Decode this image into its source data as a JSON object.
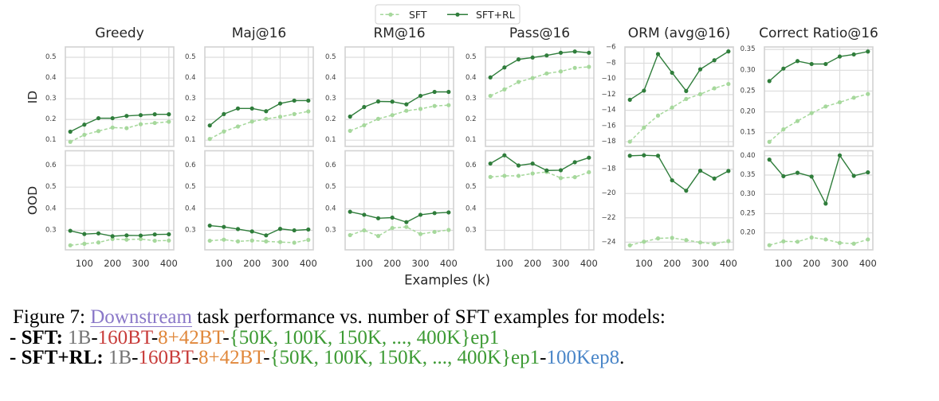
{
  "chart_data": {
    "type": "line",
    "x": [
      50,
      100,
      150,
      200,
      250,
      300,
      350,
      400
    ],
    "xlim": [
      32.5,
      417.5
    ],
    "xticks": [
      100,
      200,
      300,
      400
    ],
    "xtick_labels": [
      "100",
      "200",
      "300",
      "400"
    ],
    "xlabel": "Examples (k)",
    "row_labels": {
      "ID": "ID",
      "OOD": "OOD"
    },
    "grid": true,
    "legend": {
      "position": "top-center",
      "entries": [
        "SFT",
        "SFT+RL"
      ]
    },
    "series_colors": {
      "SFT": "#a6d89c",
      "SFT+RL": "#2f7d3b"
    },
    "series_styles": {
      "SFT": "dashed",
      "SFT+RL": "solid"
    },
    "panels": [
      {
        "title": "Greedy",
        "ID": {
          "ylim": [
            0.07,
            0.55
          ],
          "yticks": [
            0.1,
            0.2,
            0.3,
            0.4,
            0.5
          ],
          "ytick_labels": [
            "0.1",
            "0.2",
            "0.3",
            "0.4",
            "0.5"
          ],
          "series": [
            {
              "name": "SFT",
              "values": [
                0.092,
                0.126,
                0.144,
                0.161,
                0.158,
                0.177,
                0.183,
                0.189
              ]
            },
            {
              "name": "SFT+RL",
              "values": [
                0.141,
                0.175,
                0.206,
                0.206,
                0.217,
                0.221,
                0.225,
                0.225
              ]
            }
          ]
        },
        "OOD": {
          "ylim": [
            0.21,
            0.668
          ],
          "yticks": [
            0.3,
            0.4,
            0.5,
            0.6
          ],
          "ytick_labels": [
            "0.3",
            "0.4",
            "0.5",
            "0.6"
          ],
          "series": [
            {
              "name": "SFT",
              "values": [
                0.231,
                0.238,
                0.244,
                0.26,
                0.257,
                0.26,
                0.252,
                0.253
              ]
            },
            {
              "name": "SFT+RL",
              "values": [
                0.298,
                0.283,
                0.286,
                0.273,
                0.277,
                0.276,
                0.281,
                0.282
              ]
            }
          ]
        }
      },
      {
        "title": "Maj@16",
        "ID": {
          "ylim": [
            0.07,
            0.55
          ],
          "yticks": [
            0.1,
            0.2,
            0.3,
            0.4,
            0.5
          ],
          "ytick_labels": [
            "0.1",
            "0.2",
            "0.3",
            "0.4",
            "0.5"
          ],
          "series": [
            {
              "name": "SFT",
              "values": [
                0.106,
                0.142,
                0.166,
                0.19,
                0.203,
                0.213,
                0.226,
                0.239
              ]
            },
            {
              "name": "SFT+RL",
              "values": [
                0.171,
                0.226,
                0.253,
                0.253,
                0.24,
                0.277,
                0.291,
                0.291
              ]
            }
          ]
        },
        "OOD": {
          "ylim": [
            0.21,
            0.668
          ],
          "yticks": [
            0.3,
            0.4,
            0.5,
            0.6
          ],
          "ytick_labels": [
            "0.3",
            "0.4",
            "0.5",
            "0.6"
          ],
          "series": [
            {
              "name": "SFT",
              "values": [
                0.252,
                0.257,
                0.249,
                0.253,
                0.249,
                0.246,
                0.243,
                0.256
              ]
            },
            {
              "name": "SFT+RL",
              "values": [
                0.322,
                0.316,
                0.306,
                0.295,
                0.277,
                0.307,
                0.3,
                0.304
              ]
            }
          ]
        }
      },
      {
        "title": "RM@16",
        "ID": {
          "ylim": [
            0.07,
            0.55
          ],
          "yticks": [
            0.1,
            0.2,
            0.3,
            0.4,
            0.5
          ],
          "ytick_labels": [
            "0.1",
            "0.2",
            "0.3",
            "0.4",
            "0.5"
          ],
          "series": [
            {
              "name": "SFT",
              "values": [
                0.145,
                0.172,
                0.203,
                0.221,
                0.242,
                0.251,
                0.265,
                0.269
              ]
            },
            {
              "name": "SFT+RL",
              "values": [
                0.214,
                0.26,
                0.287,
                0.286,
                0.273,
                0.314,
                0.333,
                0.333
              ]
            }
          ]
        },
        "OOD": {
          "ylim": [
            0.21,
            0.668
          ],
          "yticks": [
            0.3,
            0.4,
            0.5,
            0.6
          ],
          "ytick_labels": [
            "0.3",
            "0.4",
            "0.5",
            "0.6"
          ],
          "series": [
            {
              "name": "SFT",
              "values": [
                0.278,
                0.3,
                0.274,
                0.311,
                0.316,
                0.283,
                0.293,
                0.302
              ]
            },
            {
              "name": "SFT+RL",
              "values": [
                0.386,
                0.372,
                0.356,
                0.359,
                0.338,
                0.372,
                0.38,
                0.383
              ]
            }
          ]
        }
      },
      {
        "title": "Pass@16",
        "ID": {
          "ylim": [
            0.07,
            0.55
          ],
          "yticks": [
            0.1,
            0.2,
            0.3,
            0.4,
            0.5
          ],
          "ytick_labels": [
            "0.1",
            "0.2",
            "0.3",
            "0.4",
            "0.5"
          ],
          "series": [
            {
              "name": "SFT",
              "values": [
                0.314,
                0.345,
                0.381,
                0.4,
                0.422,
                0.432,
                0.449,
                0.454
              ]
            },
            {
              "name": "SFT+RL",
              "values": [
                0.403,
                0.451,
                0.49,
                0.499,
                0.509,
                0.522,
                0.528,
                0.522
              ]
            }
          ]
        },
        "OOD": {
          "ylim": [
            0.21,
            0.668
          ],
          "yticks": [
            0.3,
            0.4,
            0.5,
            0.6
          ],
          "ytick_labels": [
            "0.3",
            "0.4",
            "0.5",
            "0.6"
          ],
          "series": [
            {
              "name": "SFT",
              "values": [
                0.547,
                0.552,
                0.552,
                0.563,
                0.57,
                0.542,
                0.546,
                0.569
              ]
            },
            {
              "name": "SFT+RL",
              "values": [
                0.609,
                0.647,
                0.6,
                0.609,
                0.577,
                0.578,
                0.615,
                0.636
              ]
            }
          ]
        }
      },
      {
        "title": "ORM (avg@16)",
        "ID": {
          "ylim": [
            -18.6,
            -5.93
          ],
          "yticks": [
            -18,
            -16,
            -14,
            -12,
            -10,
            -8,
            -6
          ],
          "ytick_labels": [
            "−18",
            "−16",
            "−14",
            "−12",
            "−10",
            "−8",
            "−6"
          ],
          "series": [
            {
              "name": "SFT",
              "values": [
                -18.0,
                -16.2,
                -14.67,
                -13.65,
                -12.56,
                -11.95,
                -11.2,
                -10.65
              ]
            },
            {
              "name": "SFT+RL",
              "values": [
                -12.66,
                -11.5,
                -6.84,
                -9.22,
                -11.54,
                -8.78,
                -7.63,
                -6.5
              ]
            }
          ]
        },
        "OOD": {
          "ylim": [
            -24.63,
            -16.49
          ],
          "yticks": [
            -24,
            -22,
            -20,
            -18
          ],
          "ytick_labels": [
            "−24",
            "−22",
            "−20",
            "−18"
          ],
          "series": [
            {
              "name": "SFT",
              "values": [
                -24.26,
                -23.96,
                -23.69,
                -23.65,
                -23.83,
                -24.02,
                -24.15,
                -23.91
              ]
            },
            {
              "name": "SFT+RL",
              "values": [
                -16.9,
                -16.86,
                -16.9,
                -18.92,
                -19.77,
                -18.13,
                -18.77,
                -18.15
              ]
            }
          ]
        }
      },
      {
        "title": "Correct Ratio@16",
        "ID": {
          "ylim": [
            0.117,
            0.356
          ],
          "yticks": [
            0.15,
            0.2,
            0.25,
            0.3,
            0.35
          ],
          "ytick_labels": [
            "0.15",
            "0.20",
            "0.25",
            "0.30",
            "0.35"
          ],
          "series": [
            {
              "name": "SFT",
              "values": [
                0.128,
                0.158,
                0.178,
                0.197,
                0.213,
                0.223,
                0.234,
                0.243
              ]
            },
            {
              "name": "SFT+RL",
              "values": [
                0.274,
                0.304,
                0.322,
                0.315,
                0.315,
                0.333,
                0.338,
                0.345
              ]
            }
          ]
        },
        "OOD": {
          "ylim": [
            0.156,
            0.413
          ],
          "yticks": [
            0.2,
            0.25,
            0.3,
            0.35,
            0.4
          ],
          "ytick_labels": [
            "0.20",
            "0.25",
            "0.30",
            "0.35",
            "0.40"
          ],
          "series": [
            {
              "name": "SFT",
              "values": [
                0.168,
                0.178,
                0.177,
                0.188,
                0.183,
                0.174,
                0.172,
                0.183
              ]
            },
            {
              "name": "SFT+RL",
              "values": [
                0.39,
                0.347,
                0.356,
                0.346,
                0.276,
                0.401,
                0.348,
                0.357
              ]
            }
          ]
        }
      }
    ]
  },
  "caption": {
    "figure_label": "Figure 7:",
    "link_text": "Downstream",
    "line1_rest": "task performance vs. number of SFT examples for models:",
    "sep": "-",
    "end": ".",
    "sft": {
      "label": "- SFT:",
      "model": "1B",
      "tokens": "160BT",
      "mix": "8+42BT",
      "examples": "{50K, 100K, 150K, ..., 400K}ep1"
    },
    "sft_rl": {
      "label": "- SFT+RL:",
      "model": "1B",
      "tokens": "160BT",
      "mix": "8+42BT",
      "examples": "{50K, 100K, 150K, ..., 400K}ep1",
      "rl": "100Kep8"
    },
    "colors": {
      "link": "#8a78c8",
      "model": "#737373",
      "tokens": "#c83c3a",
      "mix": "#e0873a",
      "examples": "#3c9a33",
      "rl": "#4a86c8"
    }
  }
}
